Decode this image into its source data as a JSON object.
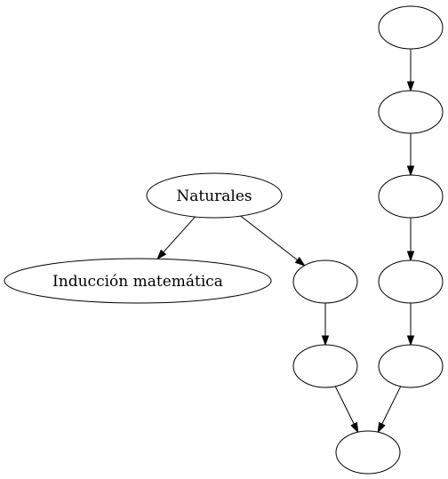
{
  "graph": {
    "nodes": [
      {
        "id": "naturales",
        "label": "Naturales"
      },
      {
        "id": "induccion",
        "label": "Inducción matemática"
      },
      {
        "id": "mid_a",
        "label": ""
      },
      {
        "id": "mid_b",
        "label": ""
      },
      {
        "id": "col_1",
        "label": ""
      },
      {
        "id": "col_2",
        "label": ""
      },
      {
        "id": "col_3",
        "label": ""
      },
      {
        "id": "col_4",
        "label": ""
      },
      {
        "id": "col_5",
        "label": ""
      },
      {
        "id": "sink",
        "label": ""
      }
    ],
    "edges": [
      {
        "from": "naturales",
        "to": "induccion"
      },
      {
        "from": "naturales",
        "to": "mid_a"
      },
      {
        "from": "mid_a",
        "to": "mid_b"
      },
      {
        "from": "mid_b",
        "to": "sink"
      },
      {
        "from": "col_1",
        "to": "col_2"
      },
      {
        "from": "col_2",
        "to": "col_3"
      },
      {
        "from": "col_3",
        "to": "col_4"
      },
      {
        "from": "col_4",
        "to": "col_5"
      },
      {
        "from": "col_5",
        "to": "sink"
      }
    ]
  }
}
